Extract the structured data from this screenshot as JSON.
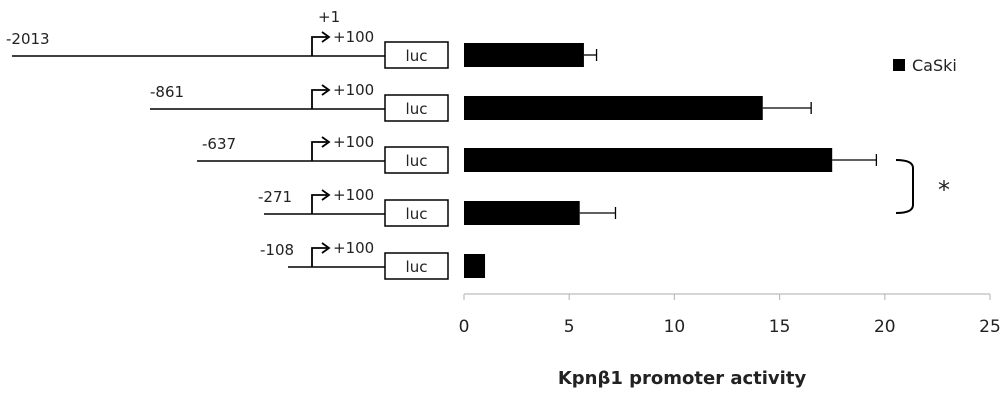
{
  "chart_data": {
    "type": "bar",
    "orientation": "horizontal",
    "categories": [
      "-2013",
      "-861",
      "-637",
      "-271",
      "-108"
    ],
    "series": [
      {
        "name": "CaSki",
        "color": "#000000",
        "values": [
          5.7,
          14.2,
          17.5,
          5.5,
          1.0
        ],
        "errors": [
          0.6,
          2.3,
          2.1,
          1.7,
          0.0
        ]
      }
    ],
    "xlabel": "Kpnβ1 promoter activity",
    "xlim": [
      0,
      25
    ],
    "xticks": [
      0,
      5,
      10,
      15,
      20,
      25
    ],
    "legend": {
      "label": "CaSki",
      "placement": "top-right"
    },
    "annotation": {
      "text": "*",
      "between": [
        "-637",
        "-271"
      ]
    },
    "grid": false
  },
  "constructs": {
    "tss_label": "+1",
    "end_label": "+100",
    "reporter_label": "luc"
  }
}
